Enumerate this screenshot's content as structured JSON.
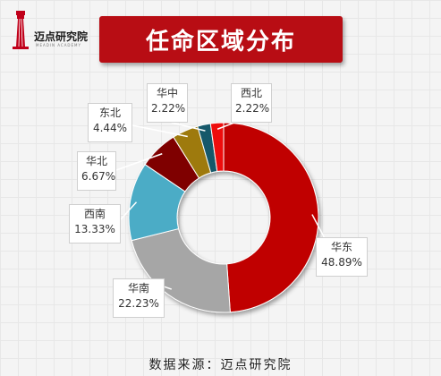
{
  "logo": {
    "name": "迈点研究院",
    "tagline": "MEADIN ACADEMY"
  },
  "title": "任命区域分布",
  "source": "数据来源：迈点研究院",
  "colors": {
    "title_bg": "#b80d14",
    "华东": "#c00000",
    "华南": "#a6a6a6",
    "西南": "#4bacc6",
    "华北": "#7f0000",
    "东北": "#9e7a08",
    "华中": "#17596b",
    "西北": "#ee1111"
  },
  "chart_data": {
    "type": "pie",
    "donut": true,
    "title": "任命区域分布",
    "categories": [
      "华东",
      "华南",
      "西南",
      "华北",
      "东北",
      "华中",
      "西北"
    ],
    "values": [
      48.89,
      22.23,
      13.33,
      6.67,
      4.44,
      2.22,
      2.22
    ],
    "value_labels": [
      "48.89%",
      "22.23%",
      "13.33%",
      "6.67%",
      "4.44%",
      "2.22%",
      "2.22%"
    ],
    "unit": "%"
  }
}
